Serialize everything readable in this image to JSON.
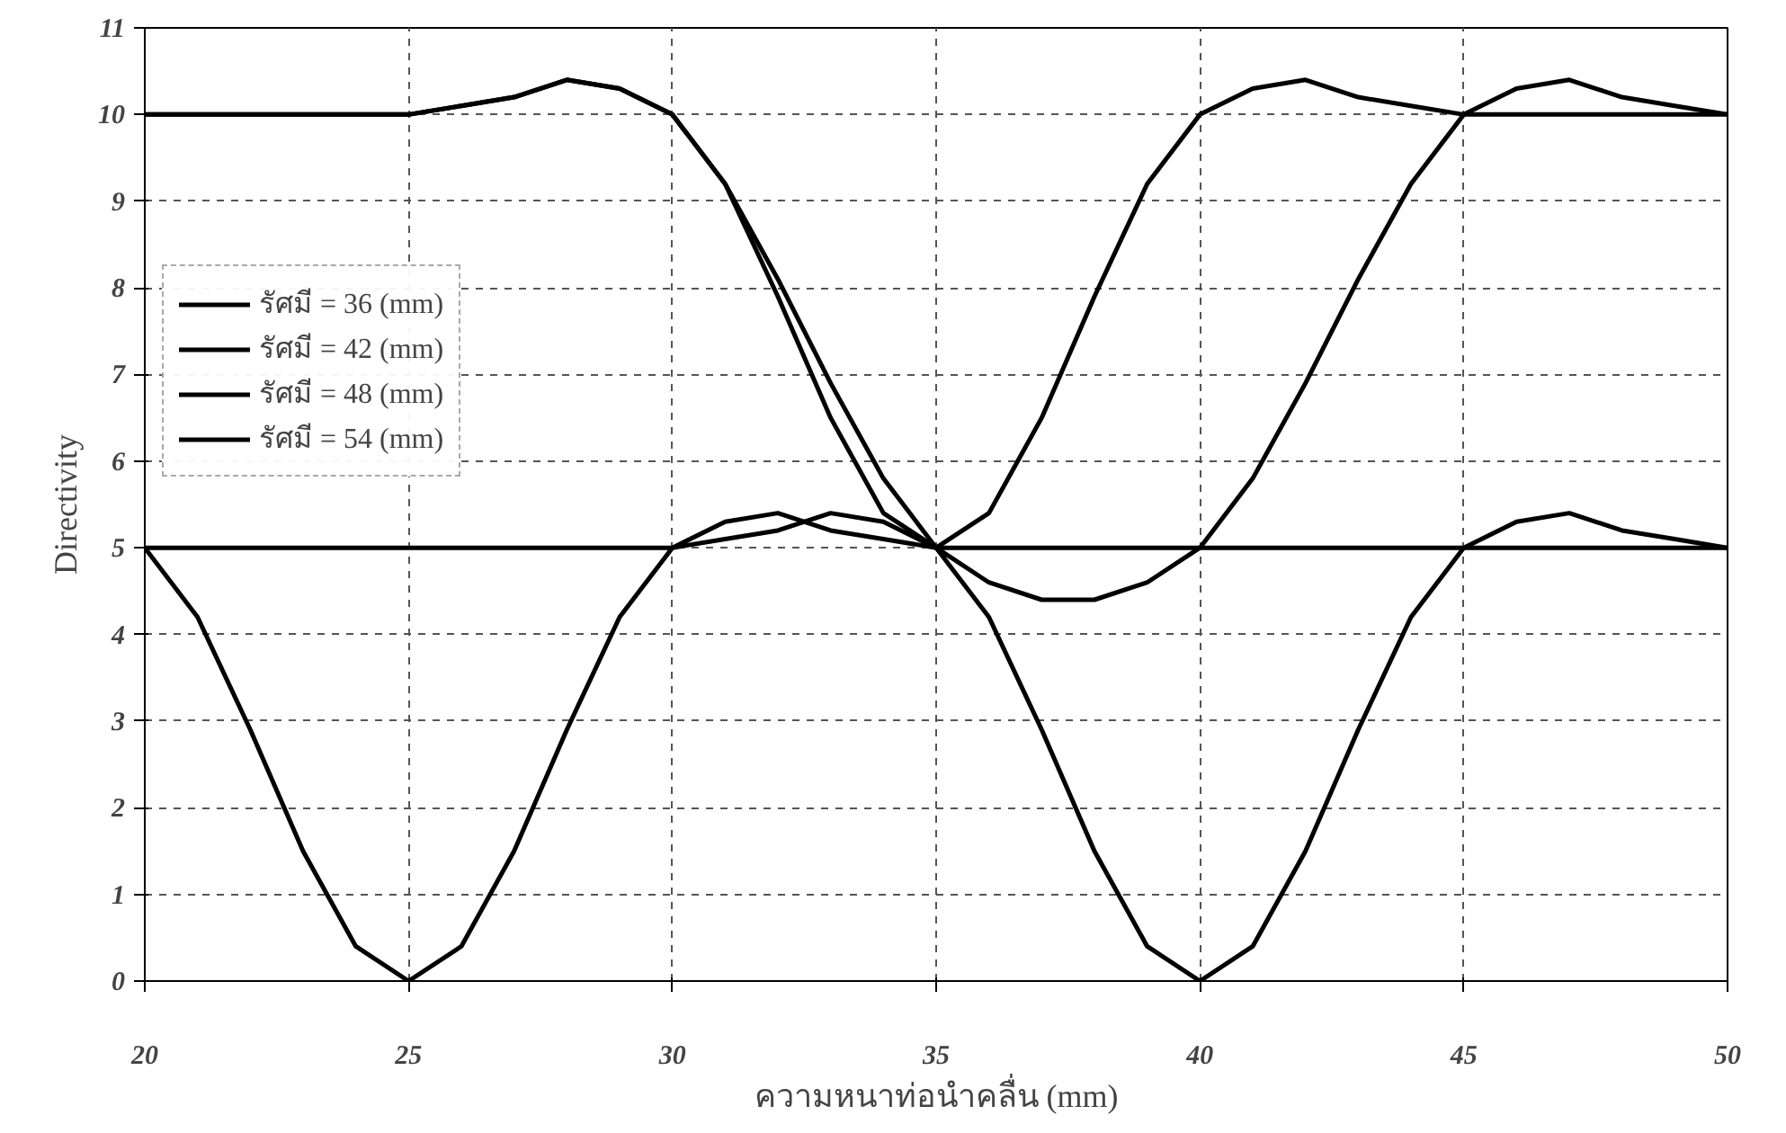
{
  "chart_data": {
    "type": "line",
    "xlabel": "ความหนาท่อนำคลื่น (mm)",
    "ylabel": "Directivity",
    "x": [
      20,
      21,
      22,
      23,
      24,
      25,
      26,
      27,
      28,
      29,
      30,
      31,
      32,
      33,
      34,
      35,
      36,
      37,
      38,
      39,
      40,
      41,
      42,
      43,
      44,
      45,
      46,
      47,
      48,
      49,
      50
    ],
    "series": [
      {
        "name": "รัศมี = 36 (mm)",
        "color": "#000000",
        "values": [
          5,
          4.2,
          2.9,
          1.5,
          0.4,
          0,
          0.4,
          1.5,
          2.9,
          4.2,
          5,
          5.3,
          5.4,
          5.2,
          5.1,
          5,
          5,
          5,
          5,
          5,
          5,
          5,
          5,
          5,
          5,
          5,
          5,
          5,
          5,
          5,
          5
        ]
      },
      {
        "name": "รัศมี = 42 (mm)",
        "color": "#000000",
        "values": [
          5,
          5,
          5,
          5,
          5,
          5,
          5,
          5,
          5,
          5,
          5,
          5.1,
          5.2,
          5.4,
          5.3,
          5,
          4.2,
          2.9,
          1.5,
          0.4,
          0,
          0.4,
          1.5,
          2.9,
          4.2,
          5,
          5.3,
          5.4,
          5.2,
          5.1,
          5
        ]
      },
      {
        "name": "รัศมี = 48 (mm)",
        "color": "#000000",
        "values": [
          10,
          10,
          10,
          10,
          10,
          10,
          10.1,
          10.2,
          10.4,
          10.3,
          10,
          9.2,
          7.9,
          6.5,
          5.4,
          5,
          5.4,
          6.5,
          7.9,
          9.2,
          10,
          10.3,
          10.4,
          10.2,
          10.1,
          10,
          10,
          10,
          10,
          10,
          10
        ]
      },
      {
        "name": "รัศมี = 54 (mm)",
        "color": "#000000",
        "values": [
          10,
          10,
          10,
          10,
          10,
          10,
          10.1,
          10.2,
          10.4,
          10.3,
          10,
          9.2,
          8.1,
          6.9,
          5.8,
          5,
          4.6,
          4.4,
          4.4,
          4.6,
          5,
          5.8,
          6.9,
          8.1,
          9.2,
          10,
          10.3,
          10.4,
          10.2,
          10.1,
          10
        ]
      }
    ],
    "xlim": [
      20,
      50
    ],
    "xticks": [
      20,
      25,
      30,
      35,
      40,
      45,
      50
    ],
    "ylim": [
      0,
      11
    ],
    "yticks": [
      0,
      1,
      2,
      3,
      4,
      5,
      6,
      7,
      8,
      9,
      10,
      11
    ],
    "grid": true,
    "legend": "top left",
    "line_style": "solid"
  }
}
